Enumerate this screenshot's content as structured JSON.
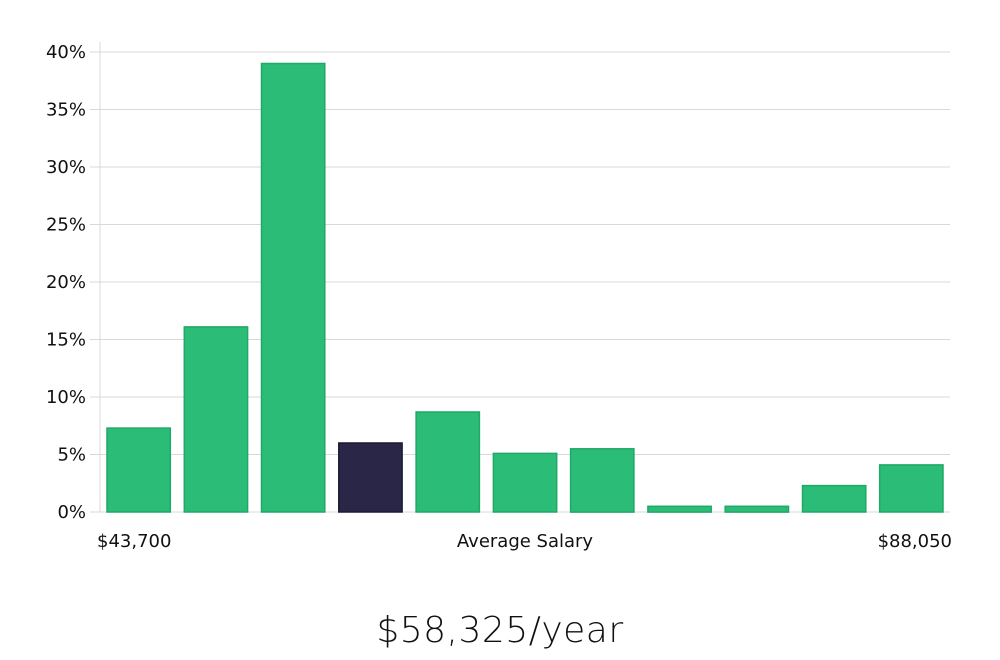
{
  "chart_data": {
    "type": "bar",
    "categories": [
      "1",
      "2",
      "3",
      "4",
      "5",
      "6",
      "7",
      "8",
      "9",
      "10",
      "11"
    ],
    "values": [
      7.3,
      16.1,
      39.0,
      6.0,
      8.7,
      5.1,
      5.5,
      0.5,
      0.5,
      2.3,
      4.1
    ],
    "highlight_index": 3,
    "ylim": [
      0,
      40
    ],
    "yticks": [
      {
        "value": 0,
        "label": "0%"
      },
      {
        "value": 5,
        "label": "5%"
      },
      {
        "value": 10,
        "label": "10%"
      },
      {
        "value": 15,
        "label": "15%"
      },
      {
        "value": 20,
        "label": "20%"
      },
      {
        "value": 25,
        "label": "25%"
      },
      {
        "value": 30,
        "label": "30%"
      },
      {
        "value": 35,
        "label": "35%"
      },
      {
        "value": 40,
        "label": "40%"
      }
    ],
    "x_min_label": "$43,700",
    "x_center_label": "Average Salary",
    "x_max_label": "$88,050",
    "grid": true,
    "colors": {
      "bar": "#2bbd77",
      "bar_edge": "#1fa866",
      "highlight": "#2a2647",
      "grid": "#d9d9d9"
    }
  },
  "headline": {
    "salary": "$58,325/year"
  }
}
